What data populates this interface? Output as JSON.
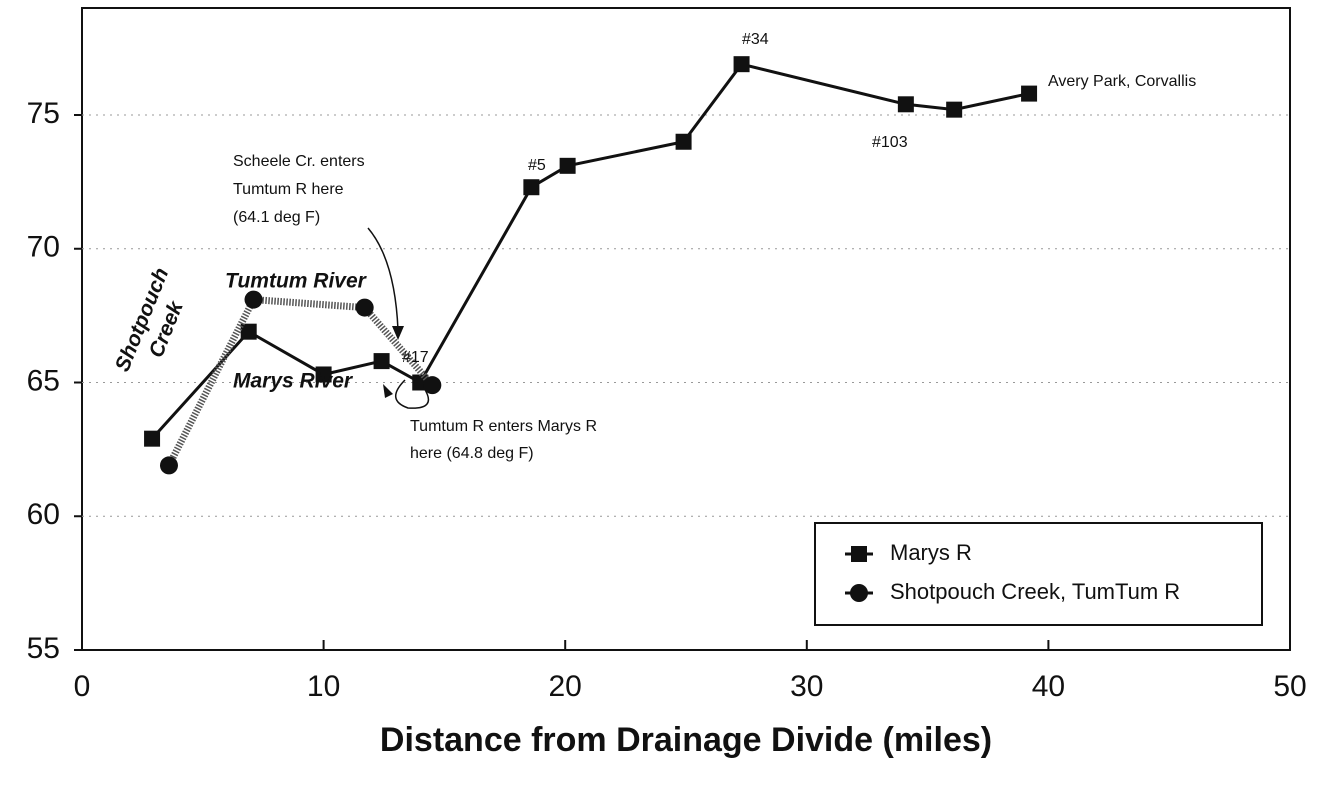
{
  "chart_data": {
    "type": "line",
    "xlabel": "Distance from Drainage Divide (miles)",
    "xlim": [
      0,
      50
    ],
    "xticks": [
      0,
      10,
      20,
      30,
      40,
      50
    ],
    "ylim": [
      55,
      79
    ],
    "yticks": [
      55,
      60,
      65,
      70,
      75
    ],
    "grid": true,
    "legend": "lower right",
    "series": [
      {
        "name": "Marys R",
        "color": "#111111",
        "marker": "square",
        "x": [
          2.9,
          6.9,
          10,
          12.4,
          14.0,
          18.6,
          20.1,
          24.9,
          27.3,
          34.1,
          36.1,
          39.2
        ],
        "values": [
          62.9,
          66.9,
          65.3,
          65.8,
          65.0,
          72.3,
          73.1,
          74.0,
          76.9,
          75.4,
          75.2,
          75.8
        ]
      },
      {
        "name": "Shotpouch Creek, TumTum R",
        "color": "#111111",
        "marker": "circle",
        "x": [
          3.6,
          7.1,
          11.7,
          14.5
        ],
        "values": [
          61.9,
          68.1,
          67.8,
          64.9
        ]
      }
    ],
    "annotations": [
      {
        "lines": [
          "#17"
        ]
      },
      {
        "lines": [
          "#5"
        ]
      },
      {
        "lines": [
          "#34"
        ]
      },
      {
        "lines": [
          "#103"
        ]
      },
      {
        "lines": [
          "Avery Park, Corvallis"
        ]
      },
      {
        "lines": [
          "Scheele Cr. enters",
          "Tumtum R here",
          "(64.1 deg F)"
        ]
      },
      {
        "lines": [
          "Tumtum R enters Marys R",
          "here (64.8 deg F)"
        ]
      },
      {
        "lines": [
          "Tumtum River"
        ]
      },
      {
        "lines": [
          "Marys River"
        ]
      },
      {
        "lines": [
          "Shotpouch",
          "Creek"
        ]
      }
    ]
  }
}
